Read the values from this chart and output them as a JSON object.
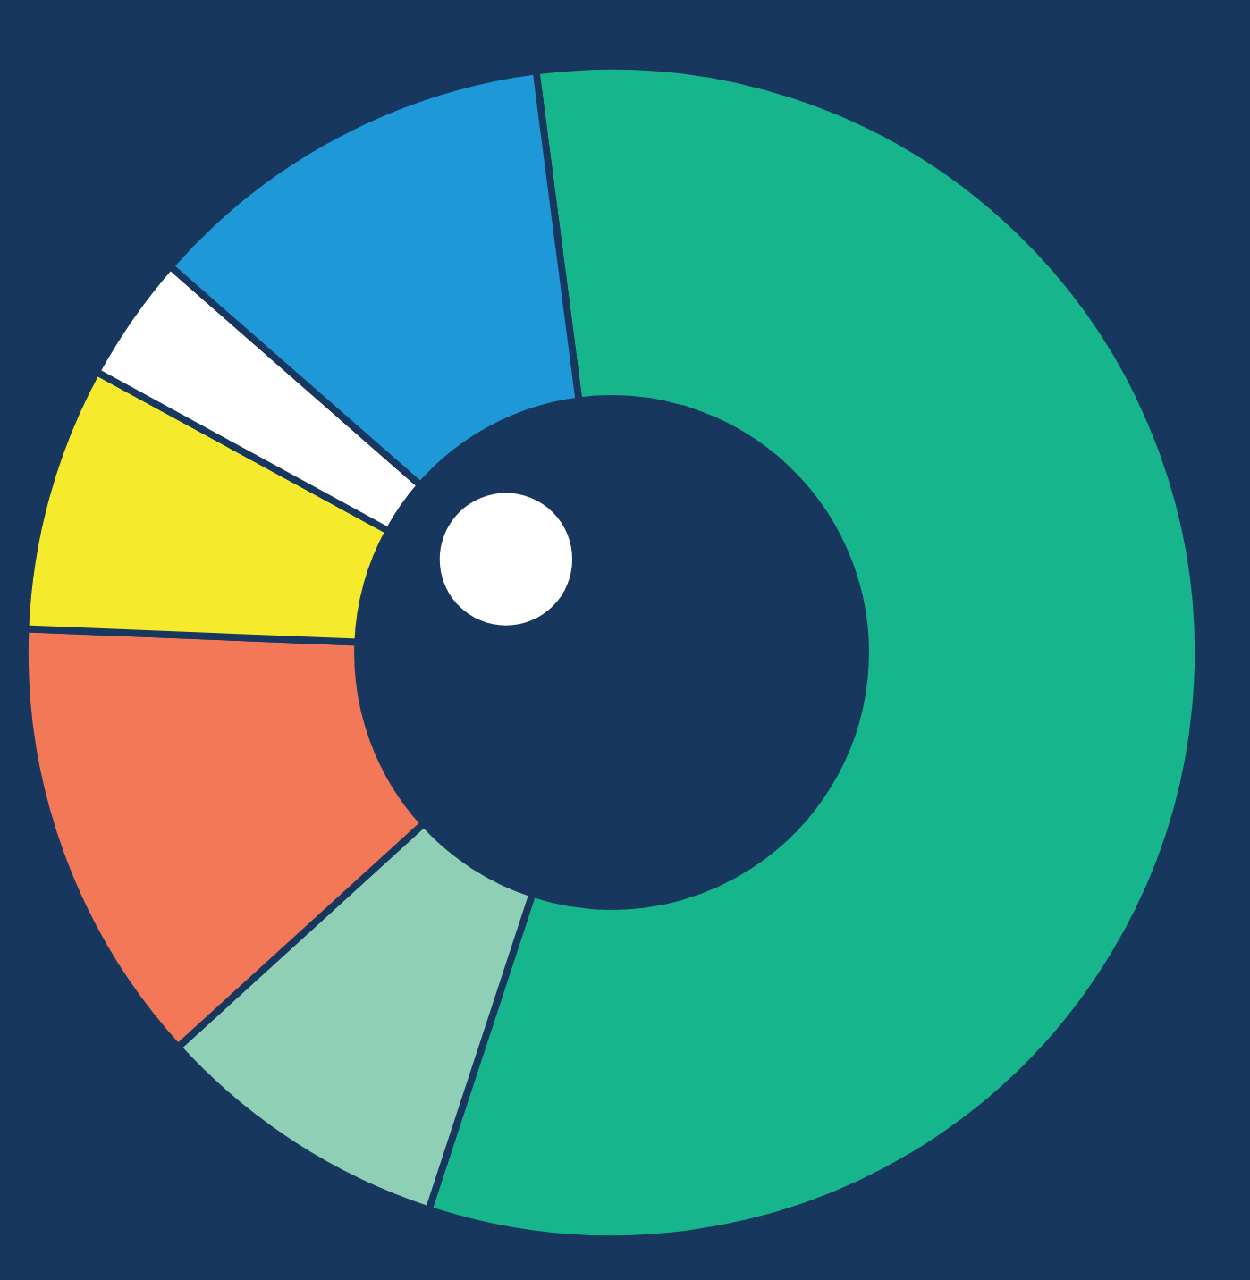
{
  "chart_data": {
    "type": "donut",
    "categories": [
      null,
      null,
      null,
      null,
      null,
      null
    ],
    "values": [
      57.1,
      8.2,
      12.4,
      7.3,
      3.5,
      11.5
    ],
    "colors": [
      "#17b58c",
      "#8ecfb5",
      "#f37858",
      "#f5eb2c",
      "#ffffff",
      "#1e98d6"
    ]
  }
}
